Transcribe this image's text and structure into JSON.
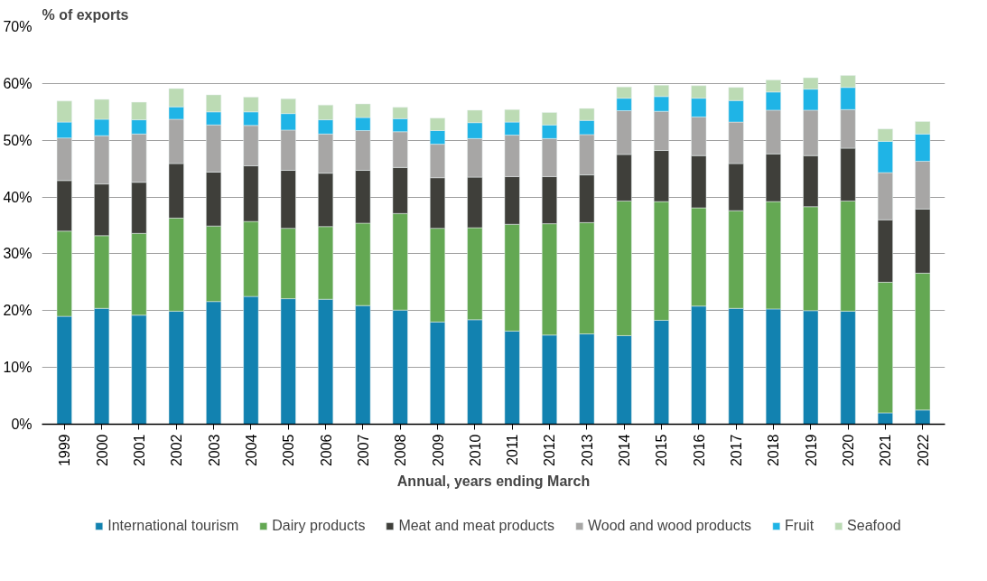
{
  "chart_data": {
    "type": "bar",
    "stacked": true,
    "ylabel": "% of exports",
    "xlabel": "Annual, years ending March",
    "categories": [
      "1999",
      "2000",
      "2001",
      "2002",
      "2003",
      "2004",
      "2005",
      "2006",
      "2007",
      "2008",
      "2009",
      "2010",
      "2011",
      "2012",
      "2013",
      "2014",
      "2015",
      "2016",
      "2017",
      "2018",
      "2019",
      "2020",
      "2021",
      "2022"
    ],
    "ylim": [
      0,
      70
    ],
    "yticks": [
      {
        "value": 0,
        "label": "0%"
      },
      {
        "value": 10,
        "label": "10%"
      },
      {
        "value": 20,
        "label": "20%"
      },
      {
        "value": 30,
        "label": "30%"
      },
      {
        "value": 40,
        "label": "40%"
      },
      {
        "value": 50,
        "label": "50%"
      },
      {
        "value": 60,
        "label": "60%"
      },
      {
        "value": 70,
        "label": "70%"
      }
    ],
    "grid": "y",
    "legend": "bottom",
    "series": [
      {
        "name": "International tourism",
        "color": "#1282b0",
        "values": [
          19.0,
          20.4,
          19.2,
          19.9,
          21.6,
          22.5,
          22.1,
          22.0,
          20.9,
          20.1,
          18.0,
          18.4,
          16.4,
          15.7,
          15.9,
          15.6,
          18.3,
          20.8,
          20.4,
          20.3,
          20.0,
          19.9,
          2.0,
          2.5
        ]
      },
      {
        "name": "Dairy products",
        "color": "#64a853",
        "values": [
          15.0,
          12.8,
          14.4,
          16.4,
          13.3,
          13.2,
          12.4,
          12.8,
          14.5,
          17.0,
          16.5,
          16.2,
          18.8,
          19.6,
          19.6,
          23.7,
          20.9,
          17.3,
          17.2,
          18.9,
          18.3,
          19.4,
          23.0,
          24.1
        ]
      },
      {
        "name": "Meat and meat products",
        "color": "#3f3f3a",
        "values": [
          8.9,
          9.1,
          9.0,
          9.6,
          9.5,
          9.8,
          10.2,
          9.4,
          9.3,
          8.1,
          8.9,
          8.9,
          8.4,
          8.3,
          8.4,
          8.2,
          9.0,
          9.2,
          8.3,
          8.4,
          9.0,
          9.3,
          11.0,
          11.3
        ]
      },
      {
        "name": "Wood and wood products",
        "color": "#a7a6a5",
        "values": [
          7.5,
          8.5,
          8.5,
          7.8,
          8.3,
          7.1,
          7.1,
          6.9,
          7.0,
          6.3,
          5.9,
          6.8,
          7.3,
          6.7,
          7.1,
          7.7,
          6.9,
          6.8,
          7.3,
          7.7,
          8.0,
          6.8,
          8.3,
          8.4
        ]
      },
      {
        "name": "Fruit",
        "color": "#1fb4e6",
        "values": [
          2.8,
          2.9,
          2.5,
          2.2,
          2.3,
          2.4,
          2.9,
          2.5,
          2.3,
          2.3,
          2.4,
          2.8,
          2.3,
          2.4,
          2.5,
          2.2,
          2.6,
          3.3,
          3.8,
          3.2,
          3.7,
          3.9,
          5.5,
          4.8
        ]
      },
      {
        "name": "Seafood",
        "color": "#bcdbb4",
        "values": [
          3.7,
          3.5,
          3.1,
          3.2,
          3.0,
          2.6,
          2.6,
          2.6,
          2.4,
          2.0,
          2.2,
          2.2,
          2.2,
          2.2,
          2.1,
          2.0,
          2.0,
          2.2,
          2.3,
          2.1,
          2.0,
          2.1,
          2.2,
          2.2
        ]
      }
    ]
  }
}
